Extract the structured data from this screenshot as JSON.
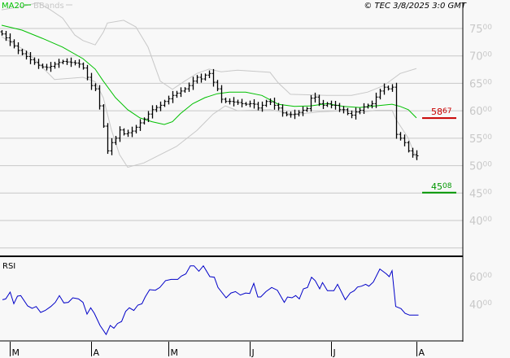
{
  "header": {
    "legend_ma": "MA20",
    "legend_bb": "BBands",
    "copyright": "© TEC 3/8/2025 3:0 GMT",
    "rsi_label": "RSI"
  },
  "colors": {
    "ma": "#00c000",
    "bbands": "#c8c8c8",
    "bars": "#000000",
    "rsi": "#0000c8",
    "resistance": "#c80000",
    "support": "#009600",
    "grid": "#c8c8c8"
  },
  "chart_data": [
    {
      "type": "bar-ohlc",
      "title": "",
      "y_ticks": [
        "7500",
        "7000",
        "6500",
        "6000",
        "5500",
        "5000",
        "4500",
        "4000"
      ],
      "y_tick_values": [
        7500,
        7000,
        6500,
        6000,
        5500,
        5000,
        4500,
        4000
      ],
      "ylim": [
        3500,
        7900
      ],
      "grid": true,
      "x_tick_labels": [
        "M",
        "A",
        "M",
        "J",
        "J",
        "A"
      ],
      "x_tick_index": [
        2,
        22,
        41,
        61,
        81,
        102
      ],
      "closes": [
        7400,
        7330,
        7260,
        7180,
        7100,
        7040,
        6990,
        6930,
        6880,
        6830,
        6800,
        6790,
        6810,
        6850,
        6880,
        6900,
        6890,
        6880,
        6870,
        6850,
        6780,
        6610,
        6460,
        6400,
        6090,
        5720,
        5270,
        5420,
        5500,
        5650,
        5580,
        5600,
        5630,
        5700,
        5780,
        5850,
        5940,
        6020,
        6060,
        6100,
        6170,
        6220,
        6280,
        6320,
        6360,
        6400,
        6460,
        6540,
        6610,
        6580,
        6650,
        6680,
        6520,
        6400,
        6210,
        6170,
        6170,
        6160,
        6150,
        6130,
        6120,
        6130,
        6120,
        6050,
        6100,
        6170,
        6160,
        6100,
        6050,
        5960,
        5930,
        5930,
        5940,
        5970,
        6010,
        6040,
        6230,
        6250,
        6130,
        6100,
        6130,
        6100,
        6100,
        6020,
        6020,
        5950,
        5920,
        5980,
        6010,
        6070,
        6100,
        6130,
        6250,
        6360,
        6430,
        6400,
        6430,
        5570,
        5500,
        5420,
        5270,
        5200,
        5180
      ],
      "ma20": [
        [
          0,
          7560
        ],
        [
          5,
          7470
        ],
        [
          10,
          7320
        ],
        [
          15,
          7160
        ],
        [
          20,
          6950
        ],
        [
          23,
          6760
        ],
        [
          25,
          6540
        ],
        [
          28,
          6240
        ],
        [
          31,
          6020
        ],
        [
          34,
          5870
        ],
        [
          37,
          5800
        ],
        [
          40,
          5750
        ],
        [
          42,
          5800
        ],
        [
          44,
          5950
        ],
        [
          47,
          6130
        ],
        [
          50,
          6240
        ],
        [
          53,
          6310
        ],
        [
          56,
          6340
        ],
        [
          60,
          6340
        ],
        [
          64,
          6280
        ],
        [
          68,
          6120
        ],
        [
          72,
          6080
        ],
        [
          76,
          6090
        ],
        [
          80,
          6130
        ],
        [
          84,
          6080
        ],
        [
          88,
          6060
        ],
        [
          92,
          6090
        ],
        [
          96,
          6120
        ],
        [
          98,
          6080
        ],
        [
          100,
          6020
        ],
        [
          102,
          5870
        ]
      ],
      "bb_upper": [
        [
          0,
          7840
        ],
        [
          5,
          7900
        ],
        [
          9,
          7970
        ],
        [
          12,
          7840
        ],
        [
          15,
          7690
        ],
        [
          18,
          7380
        ],
        [
          20,
          7280
        ],
        [
          23,
          7200
        ],
        [
          25,
          7430
        ],
        [
          26,
          7600
        ],
        [
          30,
          7650
        ],
        [
          33,
          7530
        ],
        [
          36,
          7160
        ],
        [
          39,
          6540
        ],
        [
          42,
          6390
        ],
        [
          45,
          6540
        ],
        [
          48,
          6680
        ],
        [
          51,
          6760
        ],
        [
          54,
          6710
        ],
        [
          58,
          6740
        ],
        [
          66,
          6700
        ],
        [
          68,
          6510
        ],
        [
          71,
          6300
        ],
        [
          80,
          6280
        ],
        [
          86,
          6280
        ],
        [
          90,
          6340
        ],
        [
          94,
          6460
        ],
        [
          98,
          6680
        ],
        [
          102,
          6770
        ]
      ],
      "bb_lower": [
        [
          0,
          7350
        ],
        [
          6,
          7090
        ],
        [
          13,
          6570
        ],
        [
          20,
          6610
        ],
        [
          23,
          6530
        ],
        [
          25,
          6240
        ],
        [
          27,
          5650
        ],
        [
          29,
          5200
        ],
        [
          31,
          4970
        ],
        [
          35,
          5050
        ],
        [
          39,
          5200
        ],
        [
          43,
          5350
        ],
        [
          48,
          5640
        ],
        [
          52,
          5940
        ],
        [
          55,
          6090
        ],
        [
          58,
          6000
        ],
        [
          66,
          6020
        ],
        [
          72,
          5930
        ],
        [
          78,
          5980
        ],
        [
          84,
          6000
        ],
        [
          88,
          5970
        ],
        [
          92,
          6010
        ],
        [
          96,
          6010
        ],
        [
          97,
          5840
        ],
        [
          100,
          5500
        ],
        [
          102,
          5120
        ]
      ],
      "levels": [
        {
          "label": "5867",
          "value": 5867,
          "color": "#c80000"
        },
        {
          "label": "4508",
          "value": 4508,
          "color": "#009600"
        }
      ]
    },
    {
      "type": "line",
      "title": "RSI",
      "y_ticks": [
        "6000",
        "4000"
      ],
      "y_tick_values": [
        60,
        40
      ],
      "ylim": [
        14,
        74
      ],
      "series": [
        {
          "values": [
            [
              0.2,
              43.3
            ],
            [
              1,
              43.9
            ],
            [
              2.1,
              48.8
            ],
            [
              3,
              40.4
            ],
            [
              3.9,
              45.9
            ],
            [
              4.7,
              46.3
            ],
            [
              6.4,
              38.8
            ],
            [
              7.5,
              37.1
            ],
            [
              8.5,
              38.4
            ],
            [
              9.6,
              34.1
            ],
            [
              10.7,
              35.5
            ],
            [
              12.1,
              38.4
            ],
            [
              13.2,
              41.4
            ],
            [
              14.2,
              46.3
            ],
            [
              15.3,
              41
            ],
            [
              16.4,
              41.4
            ],
            [
              17.5,
              44.7
            ],
            [
              18.9,
              43.9
            ],
            [
              20,
              41.4
            ],
            [
              21,
              32.9
            ],
            [
              21.9,
              37.5
            ],
            [
              22.8,
              33.5
            ],
            [
              24.2,
              24.7
            ],
            [
              25.7,
              18.2
            ],
            [
              26.7,
              24.7
            ],
            [
              27.6,
              22.7
            ],
            [
              28.5,
              26.1
            ],
            [
              29.5,
              27.6
            ],
            [
              30.5,
              34.9
            ],
            [
              31.4,
              37.5
            ],
            [
              32.5,
              35.5
            ],
            [
              33.5,
              39.4
            ],
            [
              34.5,
              40.4
            ],
            [
              35.3,
              45.3
            ],
            [
              36.4,
              50.6
            ],
            [
              37.8,
              50.2
            ],
            [
              38.9,
              52.2
            ],
            [
              40.3,
              57.1
            ],
            [
              41.7,
              58
            ],
            [
              43.3,
              58
            ],
            [
              44.2,
              60.4
            ],
            [
              45.3,
              62
            ],
            [
              46.4,
              67.8
            ],
            [
              47.3,
              67.8
            ],
            [
              48.5,
              63.9
            ],
            [
              49.6,
              67.8
            ],
            [
              51.2,
              60
            ],
            [
              52.3,
              59.6
            ],
            [
              53.2,
              52.2
            ],
            [
              55.2,
              44.7
            ],
            [
              56.4,
              48.2
            ],
            [
              57.5,
              49.2
            ],
            [
              58.7,
              46.7
            ],
            [
              60,
              48.2
            ],
            [
              61,
              47.8
            ],
            [
              62,
              55.1
            ],
            [
              63,
              45.3
            ],
            [
              63.7,
              45.3
            ],
            [
              65,
              49.2
            ],
            [
              66.4,
              52.2
            ],
            [
              67.8,
              50.2
            ],
            [
              69.5,
              41.4
            ],
            [
              70.3,
              45.3
            ],
            [
              71.4,
              44.7
            ],
            [
              72.3,
              46.3
            ],
            [
              73.2,
              43.9
            ],
            [
              74.2,
              51.2
            ],
            [
              75.2,
              52.2
            ],
            [
              76.2,
              59.6
            ],
            [
              77.1,
              57.1
            ],
            [
              78.2,
              51.2
            ],
            [
              78.9,
              55.7
            ],
            [
              80.1,
              49.8
            ],
            [
              81.7,
              49.8
            ],
            [
              82.6,
              54.5
            ],
            [
              84.5,
              43.3
            ],
            [
              85.7,
              48.2
            ],
            [
              86.7,
              49.8
            ],
            [
              87.5,
              52.5
            ],
            [
              88.5,
              53.1
            ],
            [
              89.5,
              54.5
            ],
            [
              90.3,
              53.1
            ],
            [
              91.4,
              56.1
            ],
            [
              93,
              65.5
            ],
            [
              94.6,
              62
            ],
            [
              95.3,
              60
            ],
            [
              96,
              64.3
            ],
            [
              96.9,
              38.4
            ],
            [
              98.2,
              36.9
            ],
            [
              99.2,
              33.5
            ],
            [
              100.3,
              32.2
            ],
            [
              102.5,
              32.2
            ]
          ]
        }
      ]
    }
  ]
}
